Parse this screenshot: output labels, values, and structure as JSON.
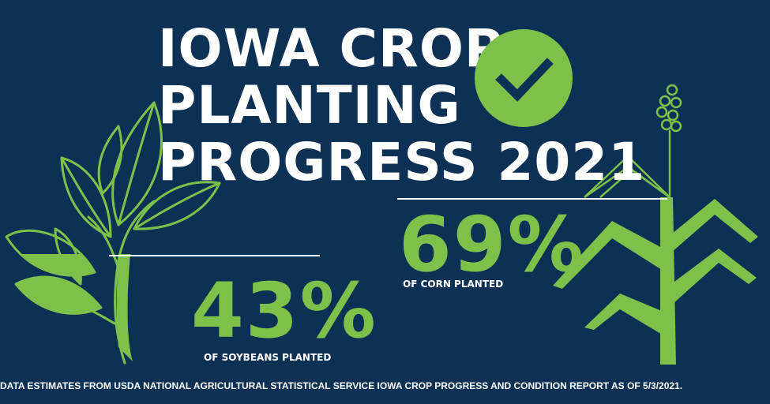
{
  "title": {
    "line1": "IOWA CROP",
    "line2": "PLANTING",
    "line3": "PROGRESS 2021"
  },
  "badge": {
    "icon": "checkmark-icon",
    "color": "#7cc24a"
  },
  "corn": {
    "value": "69%",
    "caption": "OF CORN  PLANTED"
  },
  "soybeans": {
    "value": "43%",
    "caption": "OF SOYBEANS PLANTED"
  },
  "footnote": "DATA ESTIMATES FROM USDA NATIONAL AGRICULTURAL STATISTICAL SERVICE IOWA CROP PROGRESS AND CONDITION REPORT AS OF 5/3/2021.",
  "colors": {
    "background": "#0d3154",
    "accent": "#7cc24a",
    "text": "#ffffff"
  },
  "illustrations": [
    "soybean-plant-icon",
    "corn-plant-icon"
  ]
}
